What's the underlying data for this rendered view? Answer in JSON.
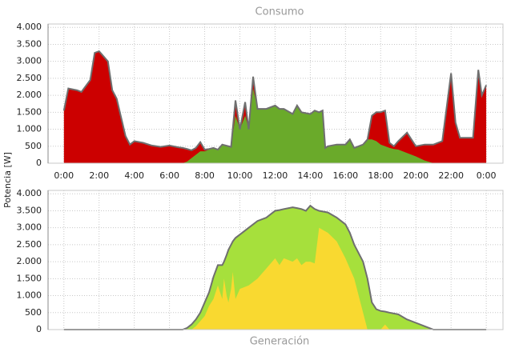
{
  "chart_data": [
    {
      "type": "area",
      "title": "Consumo",
      "title_position": "top",
      "ylabel": "Potencia [W]",
      "x": [
        0,
        0.25,
        0.75,
        1,
        1.5,
        1.75,
        2,
        2.5,
        2.75,
        3,
        3.5,
        3.75,
        4,
        4.5,
        5,
        5.5,
        6,
        6.5,
        6.75,
        7,
        7.25,
        7.5,
        7.75,
        8,
        8.25,
        8.5,
        8.75,
        9,
        9.5,
        9.75,
        10,
        10.3,
        10.5,
        10.75,
        11,
        11.5,
        12,
        12.25,
        12.5,
        13,
        13.25,
        13.5,
        14,
        14.25,
        14.5,
        14.7,
        14.85,
        15,
        15.5,
        16,
        16.25,
        16.5,
        17,
        17.25,
        17.5,
        17.75,
        18,
        18.25,
        18.5,
        18.75,
        19,
        19.5,
        20,
        20.5,
        21,
        21.5,
        22,
        22.25,
        22.5,
        23,
        23.25,
        23.55,
        23.75,
        24
      ],
      "series": [
        {
          "color": "#cc0000",
          "outline": true,
          "values": [
            1550,
            2200,
            2150,
            2100,
            2450,
            3250,
            3300,
            3000,
            2150,
            1900,
            800,
            550,
            650,
            600,
            520,
            480,
            520,
            470,
            450,
            420,
            380,
            450,
            620,
            400,
            420,
            450,
            400,
            550,
            480,
            1850,
            1000,
            1800,
            1000,
            2550,
            1600,
            1600,
            1700,
            1600,
            1600,
            1450,
            1700,
            1500,
            1450,
            1550,
            1500,
            1550,
            450,
            500,
            550,
            550,
            700,
            450,
            550,
            700,
            1400,
            1500,
            1500,
            1550,
            600,
            500,
            650,
            900,
            500,
            550,
            550,
            650,
            2650,
            1200,
            750,
            750,
            750,
            2750,
            2000,
            2300
          ]
        },
        {
          "color": "#6aaa2a",
          "values": [
            0,
            0,
            0,
            0,
            0,
            0,
            0,
            0,
            0,
            0,
            0,
            0,
            0,
            0,
            0,
            0,
            0,
            0,
            0,
            50,
            150,
            250,
            350,
            350,
            400,
            450,
            400,
            550,
            480,
            1400,
            1000,
            1400,
            1000,
            2200,
            1600,
            1600,
            1700,
            1600,
            1600,
            1450,
            1700,
            1500,
            1450,
            1550,
            1500,
            1550,
            450,
            500,
            550,
            550,
            700,
            450,
            550,
            700,
            700,
            650,
            550,
            500,
            450,
            420,
            400,
            300,
            200,
            80,
            0,
            0,
            0,
            0,
            0,
            0,
            0,
            0,
            0,
            0
          ]
        }
      ],
      "xlim": [
        -0.9,
        24.95
      ],
      "ylim": [
        0,
        4100
      ],
      "xticks": [
        {
          "value": 0,
          "label": "0:00"
        },
        {
          "value": 2,
          "label": "2:00"
        },
        {
          "value": 4,
          "label": "4:00"
        },
        {
          "value": 6,
          "label": "6:00"
        },
        {
          "value": 8,
          "label": "8:00"
        },
        {
          "value": 10,
          "label": "10:00"
        },
        {
          "value": 12,
          "label": "12:00"
        },
        {
          "value": 14,
          "label": "14:00"
        },
        {
          "value": 16,
          "label": "16:00"
        },
        {
          "value": 18,
          "label": "18:00"
        },
        {
          "value": 20,
          "label": "20:00"
        },
        {
          "value": 22,
          "label": "22:00"
        },
        {
          "value": 24,
          "label": "0:00"
        }
      ],
      "yticks": [
        0,
        500,
        {
          "value": 1000,
          "label": "1.000"
        },
        {
          "value": 1500,
          "label": "1.500"
        },
        {
          "value": 2000,
          "label": "2.000"
        },
        {
          "value": 2500,
          "label": "2.500"
        },
        {
          "value": 3000,
          "label": "3.000"
        },
        {
          "value": 3500,
          "label": "3.500"
        },
        {
          "value": 4000,
          "label": "4.000"
        }
      ],
      "grid": true
    },
    {
      "type": "area",
      "title": "Generación",
      "title_position": "bottom",
      "x": [
        0,
        6.75,
        7,
        7.25,
        7.5,
        7.75,
        8,
        8.25,
        8.5,
        8.75,
        9,
        9.1,
        9.25,
        9.35,
        9.5,
        9.6,
        9.75,
        10,
        10.5,
        11,
        11.5,
        12,
        12.25,
        12.5,
        13,
        13.25,
        13.5,
        13.75,
        14,
        14.25,
        14.5,
        15,
        15.5,
        16,
        16.25,
        16.5,
        17,
        17.25,
        17.5,
        17.75,
        18,
        18.25,
        18.5,
        19,
        19.5,
        20,
        20.5,
        21,
        24
      ],
      "series": [
        {
          "color": "#a6e03c",
          "outline": true,
          "values": [
            0,
            0,
            50,
            150,
            300,
            500,
            800,
            1100,
            1550,
            1900,
            1900,
            2000,
            2200,
            2350,
            2500,
            2600,
            2700,
            2800,
            3000,
            3200,
            3300,
            3500,
            3520,
            3550,
            3600,
            3580,
            3550,
            3500,
            3650,
            3550,
            3500,
            3450,
            3300,
            3100,
            2850,
            2500,
            2000,
            1500,
            800,
            600,
            550,
            530,
            500,
            450,
            300,
            200,
            100,
            0,
            0
          ]
        },
        {
          "color": "#f9d930",
          "values": [
            0,
            0,
            0,
            0,
            100,
            250,
            400,
            700,
            900,
            1300,
            900,
            1500,
            1000,
            800,
            1200,
            1700,
            900,
            1200,
            1300,
            1500,
            1800,
            2100,
            1900,
            2100,
            2000,
            2100,
            1900,
            2000,
            2000,
            1950,
            3000,
            2850,
            2600,
            2100,
            1800,
            1500,
            500,
            0,
            0,
            0,
            0,
            150,
            0,
            0,
            0,
            0,
            0,
            0,
            0
          ]
        }
      ],
      "xlim": [
        -0.9,
        24.95
      ],
      "ylim": [
        0,
        4100
      ],
      "xticks": [
        0,
        2,
        4,
        6,
        8,
        10,
        12,
        14,
        16,
        18,
        20,
        22,
        24
      ],
      "yticks": [
        0,
        500,
        {
          "value": 1000,
          "label": "1.000"
        },
        {
          "value": 1500,
          "label": "1.500"
        },
        {
          "value": 2000,
          "label": "2.000"
        },
        {
          "value": 2500,
          "label": "2.500"
        },
        {
          "value": 3000,
          "label": "3.000"
        },
        {
          "value": 3500,
          "label": "3.500"
        },
        {
          "value": 4000,
          "label": "4.000"
        }
      ],
      "grid": true
    }
  ]
}
